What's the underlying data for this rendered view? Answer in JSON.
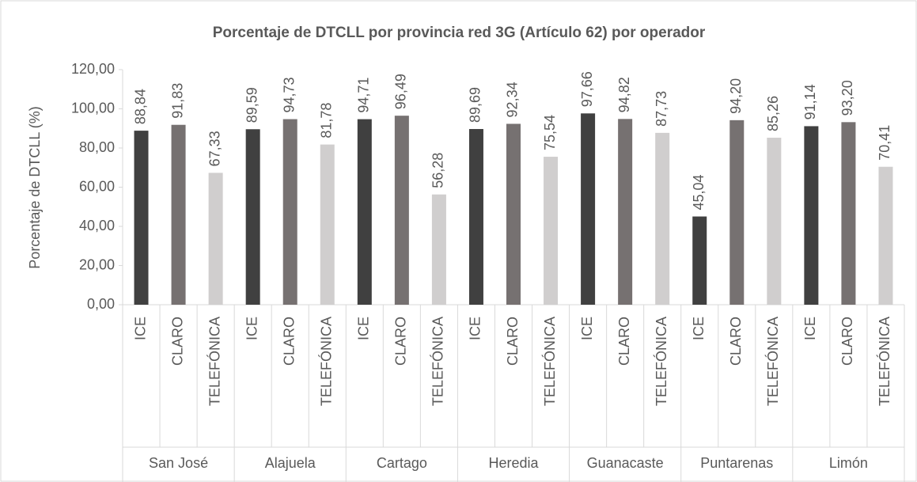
{
  "chart_data": {
    "type": "bar",
    "title": "Porcentaje de DTCLL por provincia red 3G (Artículo 62) por operador",
    "y_label": "Porcentaje de DTCLL (%)",
    "ylim": [
      0,
      120
    ],
    "yticks": [
      {
        "value": 0,
        "label": "0,00"
      },
      {
        "value": 20,
        "label": "20,00"
      },
      {
        "value": 40,
        "label": "40,00"
      },
      {
        "value": 60,
        "label": "60,00"
      },
      {
        "value": 80,
        "label": "80,00"
      },
      {
        "value": 100,
        "label": "100,00"
      },
      {
        "value": 120,
        "label": "120,00"
      }
    ],
    "grid": false,
    "colors": [
      "#404040",
      "#767171",
      "#d0cece"
    ],
    "groups": [
      {
        "label": "San José",
        "categories": [
          "ICE",
          "CLARO",
          "TELEFÓNICA"
        ],
        "values": [
          88.84,
          91.83,
          67.33
        ],
        "value_labels": [
          "88,84",
          "91,83",
          "67,33"
        ]
      },
      {
        "label": "Alajuela",
        "categories": [
          "ICE",
          "CLARO",
          "TELEFÓNICA"
        ],
        "values": [
          89.59,
          94.73,
          81.78
        ],
        "value_labels": [
          "89,59",
          "94,73",
          "81,78"
        ]
      },
      {
        "label": "Cartago",
        "categories": [
          "ICE",
          "CLARO",
          "TELEFÓNICA"
        ],
        "values": [
          94.71,
          96.49,
          56.28
        ],
        "value_labels": [
          "94,71",
          "96,49",
          "56,28"
        ]
      },
      {
        "label": "Heredia",
        "categories": [
          "ICE",
          "CLARO",
          "TELEFÓNICA"
        ],
        "values": [
          89.69,
          92.34,
          75.54
        ],
        "value_labels": [
          "89,69",
          "92,34",
          "75,54"
        ]
      },
      {
        "label": "Guanacaste",
        "categories": [
          "ICE",
          "CLARO",
          "TELEFÓNICA"
        ],
        "values": [
          97.66,
          94.82,
          87.73
        ],
        "value_labels": [
          "97,66",
          "94,82",
          "87,73"
        ]
      },
      {
        "label": "Puntarenas",
        "categories": [
          "ICE",
          "CLARO",
          "TELEFÓNICA"
        ],
        "values": [
          45.04,
          94.2,
          85.26
        ],
        "value_labels": [
          "45,04",
          "94,20",
          "85,26"
        ]
      },
      {
        "label": "Limón",
        "categories": [
          "ICE",
          "CLARO",
          "TELEFÓNICA"
        ],
        "values": [
          91.14,
          93.2,
          70.41
        ],
        "value_labels": [
          "91,14",
          "93,20",
          "70,41"
        ]
      }
    ]
  }
}
